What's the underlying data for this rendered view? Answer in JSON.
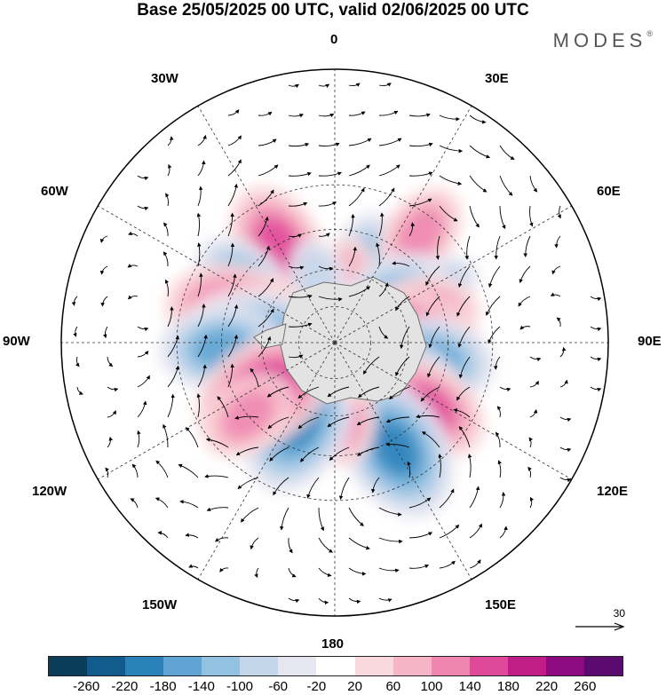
{
  "title": "Base 25/05/2025 00 UTC, valid 02/06/2025 00 UTC",
  "brand": "MODES",
  "brand_mark": "®",
  "longitude_labels": {
    "l0": "0",
    "l30e": "30E",
    "l60e": "60E",
    "l90e": "90E",
    "l120e": "120E",
    "l150e": "150E",
    "l180": "180",
    "l150w": "150W",
    "l120w": "120W",
    "l90w": "90W",
    "l60w": "60W",
    "l30w": "30W"
  },
  "reference_vector": "30",
  "colorbar": {
    "colors": [
      "#0b3c58",
      "#125b8d",
      "#2b82bb",
      "#5fa4d2",
      "#93c1e2",
      "#c3d6ea",
      "#e6e6f1",
      "#ffffff",
      "#fad9dc",
      "#f6b5c6",
      "#ee86b0",
      "#e0489a",
      "#c01d86",
      "#8e0a80",
      "#5b0a70"
    ],
    "ticks": [
      "-260",
      "-220",
      "-180",
      "-140",
      "-100",
      "-60",
      "-20",
      "20",
      "60",
      "100",
      "140",
      "180",
      "220",
      "260"
    ]
  },
  "anomaly_centers": [
    {
      "lon": 40,
      "lat": -45,
      "value": 150
    },
    {
      "lon": 20,
      "lat": -55,
      "value": -120
    },
    {
      "lon": 38,
      "lat": -36,
      "value": 130
    },
    {
      "lon": -30,
      "lat": -45,
      "value": 160
    },
    {
      "lon": -55,
      "lat": -45,
      "value": -140
    },
    {
      "lon": 62,
      "lat": -42,
      "value": -90
    },
    {
      "lon": 10,
      "lat": -62,
      "value": 100
    },
    {
      "lon": -15,
      "lat": -62,
      "value": -90
    },
    {
      "lon": -75,
      "lat": -50,
      "value": 200
    },
    {
      "lon": -85,
      "lat": -58,
      "value": 230
    },
    {
      "lon": -90,
      "lat": -58,
      "value": -200
    },
    {
      "lon": -93,
      "lat": -45,
      "value": -190
    },
    {
      "lon": 55,
      "lat": -62,
      "value": -160
    },
    {
      "lon": 75,
      "lat": -55,
      "value": 160
    },
    {
      "lon": 95,
      "lat": -65,
      "value": 240
    },
    {
      "lon": 100,
      "lat": -50,
      "value": -160
    },
    {
      "lon": 115,
      "lat": -55,
      "value": -120
    },
    {
      "lon": 125,
      "lat": -45,
      "value": 170
    },
    {
      "lon": 150,
      "lat": -42,
      "value": -210
    },
    {
      "lon": 175,
      "lat": -60,
      "value": 130
    },
    {
      "lon": -155,
      "lat": -55,
      "value": -200
    },
    {
      "lon": -125,
      "lat": -55,
      "value": 200
    },
    {
      "lon": -130,
      "lat": -45,
      "value": 120
    },
    {
      "lon": 160,
      "lat": -75,
      "value": 40
    }
  ]
}
